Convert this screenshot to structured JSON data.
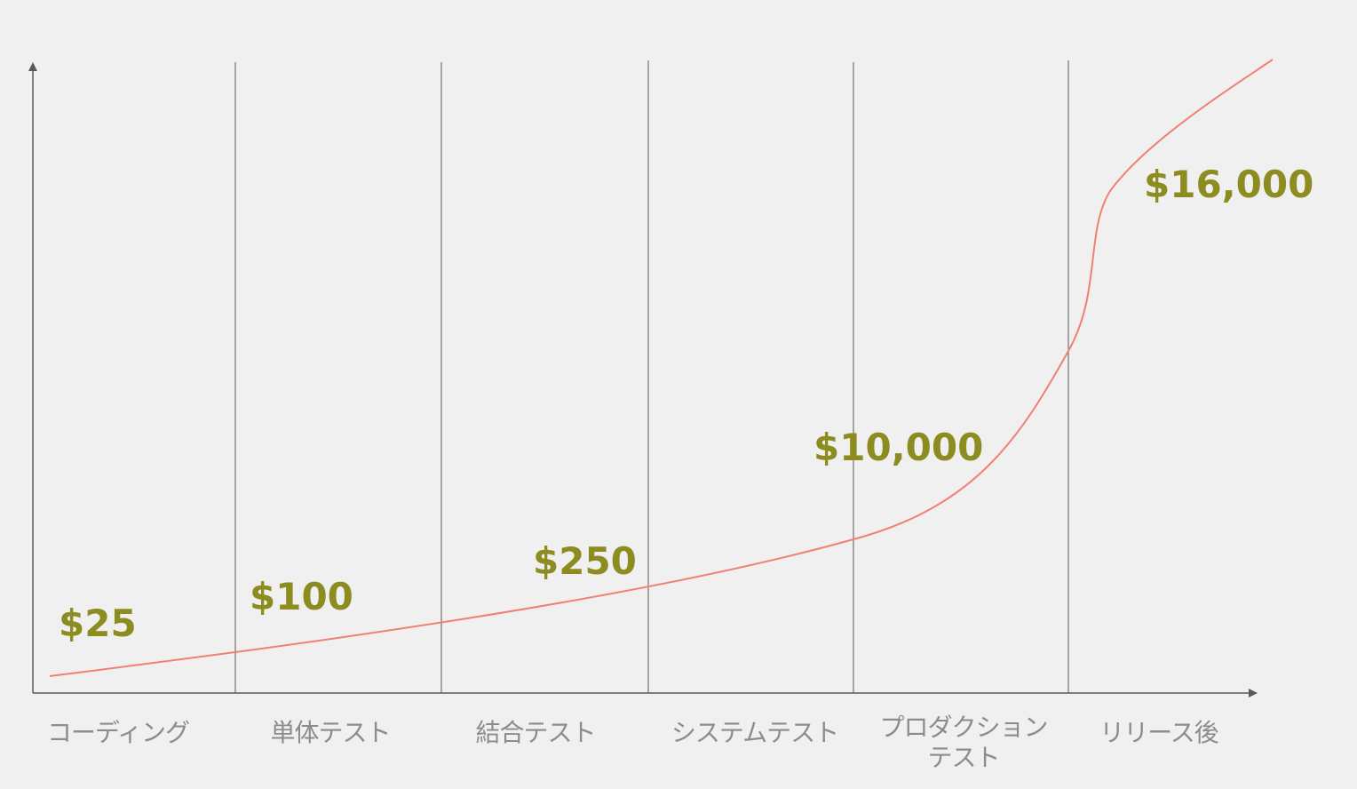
{
  "chart_data": {
    "type": "line",
    "title": "",
    "xlabel": "",
    "ylabel": "",
    "categories": [
      [
        "コーディング"
      ],
      [
        "単体テスト"
      ],
      [
        "結合テスト"
      ],
      [
        "システムテスト"
      ],
      [
        "プロダクション",
        "テスト"
      ],
      [
        "リリース後"
      ]
    ],
    "cost_labels": [
      "$25",
      "$100",
      "$250",
      "$10,000",
      "$16,000"
    ],
    "curve_color": "#f08074",
    "label_color": "#8c8c20",
    "axis_color": "#595959",
    "divider_color": "#595959",
    "phase_label_color": "#8c8c8c"
  }
}
